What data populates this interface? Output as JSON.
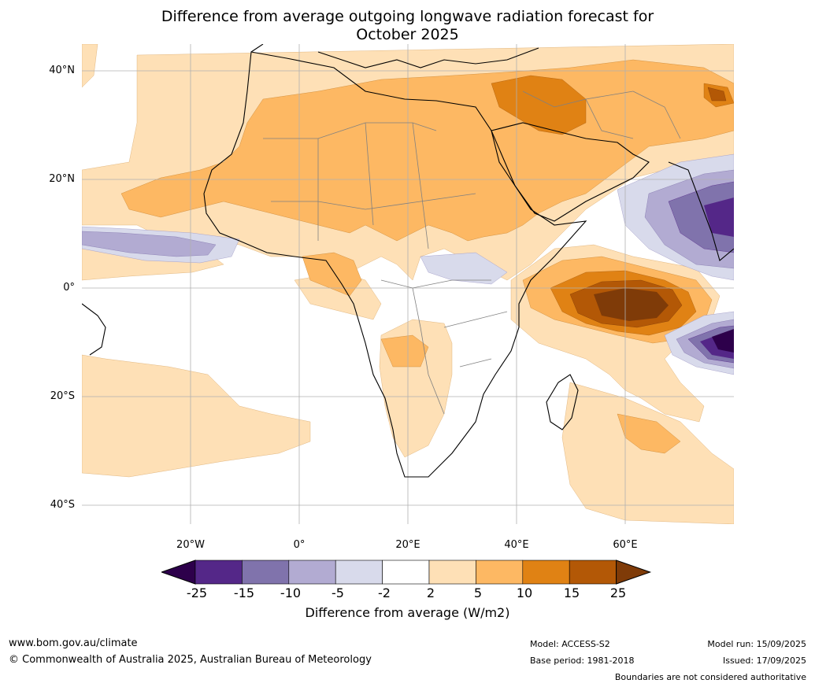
{
  "title_line1": "Difference from average outgoing longwave radiation forecast for",
  "title_line2": "October 2025",
  "lat_labels": [
    "40°N",
    "20°N",
    "0°",
    "20°S",
    "40°S"
  ],
  "lon_labels": [
    "20°W",
    "0°",
    "20°E",
    "40°E",
    "60°E"
  ],
  "colorbar": {
    "ticks": [
      "-25",
      "-15",
      "-10",
      "-5",
      "-2",
      "2",
      "5",
      "10",
      "15",
      "25"
    ],
    "colors": [
      "#2d004b",
      "#542788",
      "#8073ac",
      "#b2abd2",
      "#d8daeb",
      "#ffffff",
      "#fee0b6",
      "#fdb863",
      "#e08214",
      "#b35806",
      "#7f3b08"
    ],
    "label": "Difference from average (W/m2)"
  },
  "footer": {
    "url": "www.bom.gov.au/climate",
    "copyright": "© Commonwealth of Australia 2025, Australian Bureau of Meteorology",
    "model": "Model: ACCESS-S2",
    "base_period": "Base period: 1981-2018",
    "model_run": "Model run: 15/09/2025",
    "issued": "Issued: 17/09/2025",
    "disclaimer": "Boundaries are not considered authoritative"
  }
}
